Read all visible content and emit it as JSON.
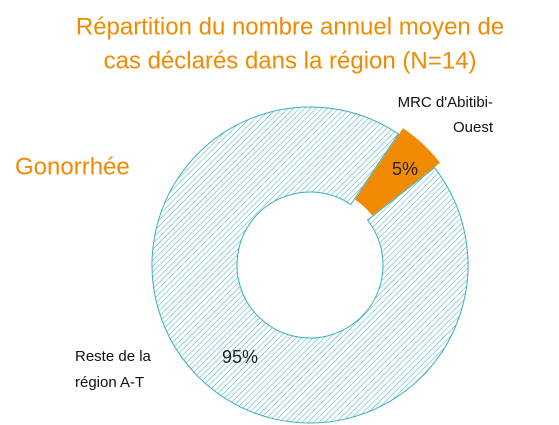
{
  "chart_data": {
    "type": "donut",
    "title": [
      "Répartition du nombre annuel moyen de",
      "cas déclarés dans la région (N=14)"
    ],
    "subtitle": "Gonorrhée",
    "labels": [
      [
        "MRC d'Abitibi-",
        "Ouest"
      ],
      [
        "Reste de la",
        "région A-T"
      ]
    ],
    "values": [
      5,
      95
    ],
    "value_labels": [
      "5%",
      "95%"
    ],
    "colors": [
      "#f08a00",
      "#3aaebf"
    ]
  }
}
